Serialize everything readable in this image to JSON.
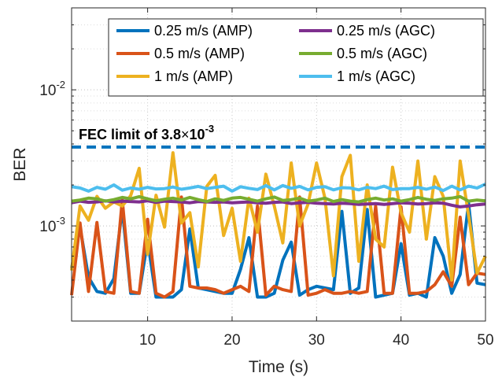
{
  "chart_data": {
    "type": "line",
    "xlabel": "Time (s)",
    "ylabel": "BER",
    "xlim": [
      1,
      50
    ],
    "ylim": [
      0.0002,
      0.04
    ],
    "yscale": "log",
    "grid": true,
    "legend_placement": "top-right",
    "x_ticks": [
      10,
      20,
      30,
      40,
      50
    ],
    "x_tick_labels": [
      "10",
      "20",
      "30",
      "40",
      "50"
    ],
    "y_ticks": [
      0.001,
      0.01
    ],
    "y_tick_labels": [
      {
        "base": "10",
        "exp": "-3"
      },
      {
        "base": "10",
        "exp": "-2"
      }
    ],
    "annotation": {
      "text": "FEC limit of 3.8",
      "times": "×",
      "base": "10",
      "exp": "-3",
      "value": 0.0038,
      "color": "#0072BD"
    },
    "x": [
      1,
      2,
      3,
      4,
      5,
      6,
      7,
      8,
      9,
      10,
      11,
      12,
      13,
      14,
      15,
      16,
      17,
      18,
      19,
      20,
      21,
      22,
      23,
      24,
      25,
      26,
      27,
      28,
      29,
      30,
      31,
      32,
      33,
      34,
      35,
      36,
      37,
      38,
      39,
      40,
      41,
      42,
      43,
      44,
      45,
      46,
      47,
      48,
      49,
      50
    ],
    "series": [
      {
        "name": "0.25 m/s (AMP)",
        "color": "#0072BD",
        "values": [
          0.00049,
          0.00098,
          0.00042,
          0.00033,
          0.00032,
          0.00041,
          0.00135,
          0.00032,
          0.00032,
          0.00078,
          0.0003,
          0.0003,
          0.0003,
          0.00034,
          0.00095,
          0.00035,
          0.00034,
          0.00033,
          0.00032,
          0.00032,
          0.00048,
          0.00082,
          0.0003,
          0.0003,
          0.00032,
          0.00056,
          0.00076,
          0.00031,
          0.00034,
          0.00036,
          0.00035,
          0.00034,
          0.00128,
          0.00032,
          0.00035,
          0.00132,
          0.0003,
          0.00031,
          0.00032,
          0.00074,
          0.00031,
          0.00032,
          0.0003,
          0.00082,
          0.0006,
          0.00032,
          0.00044,
          0.00147,
          0.00038,
          0.00037
        ]
      },
      {
        "name": "0.5 m/s (AMP)",
        "color": "#D95319",
        "values": [
          0.00031,
          0.00105,
          0.00033,
          0.00106,
          0.00033,
          0.00032,
          0.00156,
          0.00033,
          0.00032,
          0.00112,
          0.00032,
          0.0003,
          0.00033,
          0.00163,
          0.00036,
          0.00035,
          0.00035,
          0.00034,
          0.00032,
          0.00034,
          0.00036,
          0.00033,
          0.0014,
          0.00031,
          0.00036,
          0.00034,
          0.00033,
          0.00163,
          0.00031,
          0.00032,
          0.00034,
          0.00032,
          0.00032,
          0.00033,
          0.00032,
          0.00033,
          0.0014,
          0.00032,
          0.00032,
          0.00138,
          0.00032,
          0.00032,
          0.00033,
          0.00037,
          0.00046,
          0.00036,
          0.00116,
          0.00037,
          0.00045,
          0.00044
        ]
      },
      {
        "name": "1 m/s (AMP)",
        "color": "#EDB120",
        "values": [
          0.00047,
          0.0014,
          0.0011,
          0.00165,
          0.00135,
          0.0015,
          0.0014,
          0.00167,
          0.00265,
          0.00062,
          0.00168,
          0.00098,
          0.00345,
          0.00105,
          0.00125,
          0.0005,
          0.00195,
          0.00235,
          0.00085,
          0.00135,
          0.00055,
          0.0016,
          0.0009,
          0.0024,
          0.0014,
          0.00075,
          0.0029,
          0.001,
          0.00145,
          0.0029,
          0.0016,
          0.00043,
          0.0023,
          0.0033,
          0.00055,
          0.002,
          0.0008,
          0.0007,
          0.0027,
          0.00125,
          0.0009,
          0.003,
          0.0008,
          0.0023,
          0.00165,
          0.0004,
          0.003,
          0.0012,
          0.00045,
          0.0006
        ]
      },
      {
        "name": "0.25 m/s (AGC)",
        "color": "#7E2F8E",
        "values": [
          0.00148,
          0.00152,
          0.00149,
          0.0015,
          0.00153,
          0.0015,
          0.00152,
          0.00151,
          0.0015,
          0.00153,
          0.00149,
          0.00152,
          0.00151,
          0.0015,
          0.00148,
          0.00151,
          0.0015,
          0.00149,
          0.0015,
          0.00148,
          0.00149,
          0.0015,
          0.00148,
          0.00147,
          0.00149,
          0.0015,
          0.00146,
          0.00148,
          0.00149,
          0.00147,
          0.00146,
          0.00145,
          0.00147,
          0.00146,
          0.00144,
          0.00145,
          0.00146,
          0.00144,
          0.00146,
          0.00148,
          0.00147,
          0.00145,
          0.00146,
          0.00148,
          0.00147,
          0.00142,
          0.00138,
          0.0014,
          0.00143,
          0.00145
        ]
      },
      {
        "name": "0.5 m/s (AGC)",
        "color": "#77AC30",
        "values": [
          0.00152,
          0.00155,
          0.0016,
          0.00158,
          0.00152,
          0.00156,
          0.00162,
          0.00158,
          0.00164,
          0.00158,
          0.00153,
          0.00157,
          0.0016,
          0.00155,
          0.00162,
          0.00156,
          0.00151,
          0.00158,
          0.00154,
          0.0016,
          0.00162,
          0.00157,
          0.00152,
          0.00158,
          0.00163,
          0.00154,
          0.00156,
          0.0016,
          0.00152,
          0.00155,
          0.0016,
          0.00151,
          0.00156,
          0.00152,
          0.0015,
          0.00156,
          0.0016,
          0.00155,
          0.00158,
          0.00152,
          0.00156,
          0.00162,
          0.00157,
          0.00154,
          0.00158,
          0.0016,
          0.00164,
          0.00152,
          0.00155,
          0.00153
        ]
      },
      {
        "name": "1 m/s (AGC)",
        "color": "#4DBEEE",
        "values": [
          0.00194,
          0.0019,
          0.0018,
          0.00192,
          0.00186,
          0.002,
          0.00183,
          0.0019,
          0.00186,
          0.00192,
          0.00187,
          0.00188,
          0.00193,
          0.00186,
          0.0019,
          0.00195,
          0.00188,
          0.00192,
          0.00196,
          0.0018,
          0.00194,
          0.00189,
          0.00185,
          0.00198,
          0.00184,
          0.00198,
          0.00189,
          0.00195,
          0.00184,
          0.00192,
          0.00194,
          0.00184,
          0.00191,
          0.0019,
          0.00184,
          0.00192,
          0.00188,
          0.00196,
          0.00185,
          0.00188,
          0.00188,
          0.00192,
          0.00186,
          0.00193,
          0.00182,
          0.00196,
          0.00184,
          0.00196,
          0.0019,
          0.00203
        ]
      }
    ]
  }
}
